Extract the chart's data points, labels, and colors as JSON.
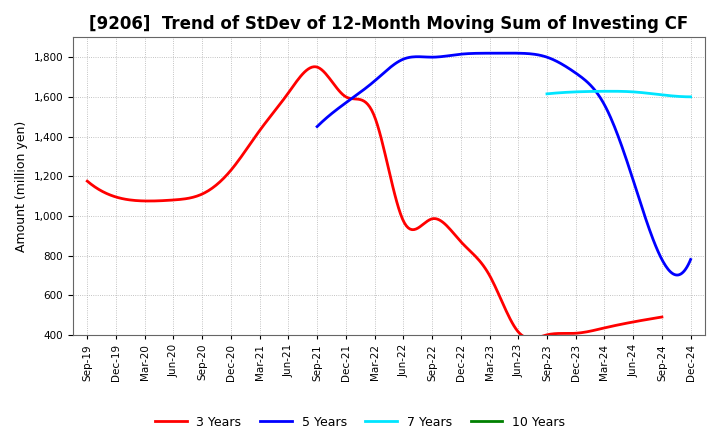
{
  "title": "[9206]  Trend of StDev of 12-Month Moving Sum of Investing CF",
  "ylabel": "Amount (million yen)",
  "background_color": "#ffffff",
  "plot_bg_color": "#ffffff",
  "grid_color": "#b0b0b0",
  "ylim": [
    400,
    1900
  ],
  "yticks": [
    400,
    600,
    800,
    1000,
    1200,
    1400,
    1600,
    1800
  ],
  "x_labels": [
    "Sep-19",
    "Dec-19",
    "Mar-20",
    "Jun-20",
    "Sep-20",
    "Dec-20",
    "Mar-21",
    "Jun-21",
    "Sep-21",
    "Dec-21",
    "Mar-22",
    "Jun-22",
    "Sep-22",
    "Dec-22",
    "Mar-23",
    "Jun-23",
    "Sep-23",
    "Dec-23",
    "Mar-24",
    "Jun-24",
    "Sep-24",
    "Dec-24"
  ],
  "series": {
    "3 Years": {
      "color": "#ff0000",
      "linewidth": 2.0,
      "data_x": [
        0,
        1,
        2,
        3,
        4,
        5,
        6,
        7,
        8,
        9,
        10,
        11,
        12,
        13,
        14,
        15,
        16,
        17,
        18,
        19,
        20
      ],
      "data_y": [
        1175,
        1095,
        1075,
        1080,
        1110,
        1230,
        1430,
        1620,
        1750,
        1600,
        1500,
        975,
        985,
        870,
        700,
        415,
        400,
        408,
        435,
        465,
        490
      ]
    },
    "5 Years": {
      "color": "#0000ff",
      "linewidth": 2.0,
      "data_x": [
        8,
        9,
        10,
        11,
        12,
        13,
        14,
        15,
        16,
        17,
        18,
        19,
        20,
        21
      ],
      "data_y": [
        1450,
        1570,
        1680,
        1790,
        1800,
        1815,
        1820,
        1820,
        1800,
        1720,
        1560,
        1180,
        780,
        780
      ]
    },
    "7 Years": {
      "color": "#00e5ff",
      "linewidth": 2.0,
      "data_x": [
        16,
        17,
        18,
        19,
        20,
        21
      ],
      "data_y": [
        1615,
        1625,
        1628,
        1625,
        1610,
        1600
      ]
    },
    "10 Years": {
      "color": "#008000",
      "linewidth": 2.0,
      "data_x": [],
      "data_y": []
    }
  },
  "legend_order": [
    "3 Years",
    "5 Years",
    "7 Years",
    "10 Years"
  ],
  "title_fontsize": 12,
  "tick_fontsize": 7.5,
  "label_fontsize": 9
}
